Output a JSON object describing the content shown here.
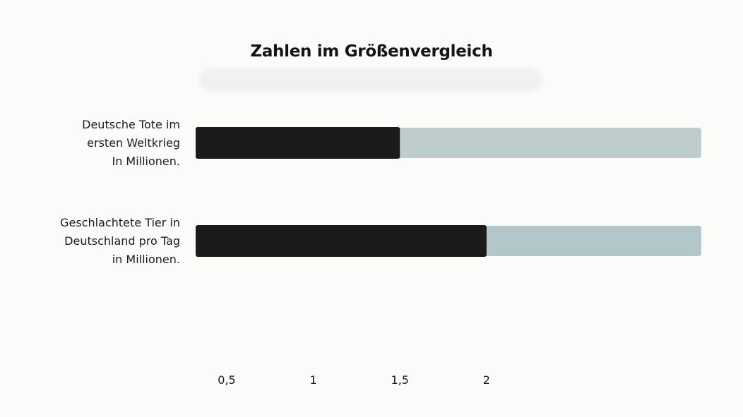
{
  "title": "Zahlen im Größenvergleich",
  "colors": {
    "bar_value": "#1b1b1b",
    "bar_track_1": "#bfcccc",
    "bar_track_2": "#b3c7cb",
    "background": "#fbfbfa"
  },
  "chart_data": {
    "type": "bar",
    "orientation": "horizontal",
    "title": "Zahlen im Größenvergleich",
    "categories": [
      "Deutsche Tote im\nersten Weltkrieg\nIn Millionen.",
      "Geschlachtete Tier in\nDeutschland pro Tag\nin Millionen."
    ],
    "values": [
      1.5,
      2
    ],
    "xticks": [
      "0,5",
      "1",
      "1,5",
      "2"
    ],
    "xtick_values": [
      0.5,
      1,
      1.5,
      2
    ],
    "xlim": [
      0,
      3.2
    ],
    "grid": false,
    "legend": "none"
  }
}
